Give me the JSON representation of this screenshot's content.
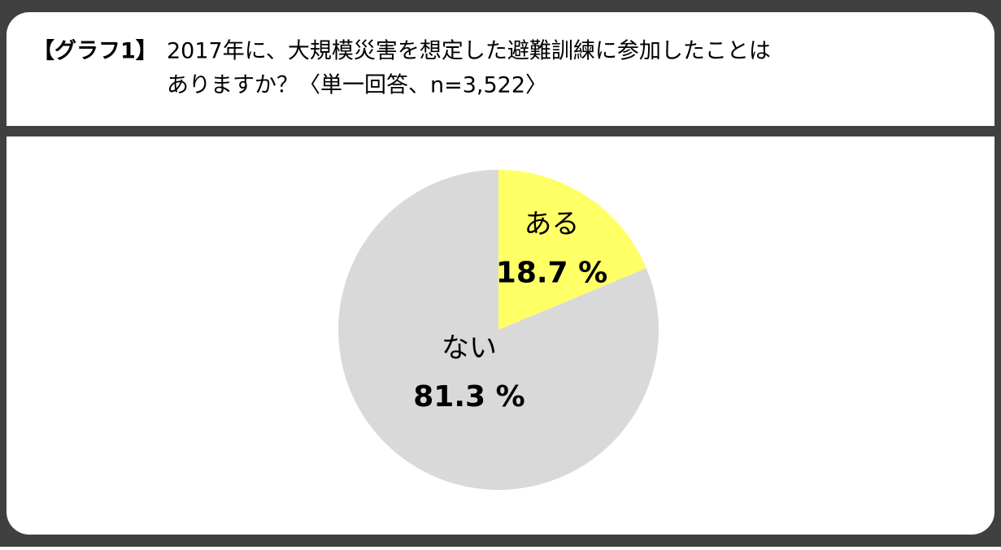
{
  "chart_data": {
    "type": "pie",
    "label": "【グラフ1】",
    "title_lines": [
      "2017年に、大規模災害を想定した避難訓練に参加したことは",
      "ありますか？〈単一回答、n=3,522〉"
    ],
    "categories": [
      "ある",
      "ない"
    ],
    "values": [
      18.7,
      81.3
    ],
    "value_labels": [
      "18.7 %",
      "81.3 %"
    ],
    "colors": [
      "#ffff66",
      "#d9d9d9"
    ]
  }
}
